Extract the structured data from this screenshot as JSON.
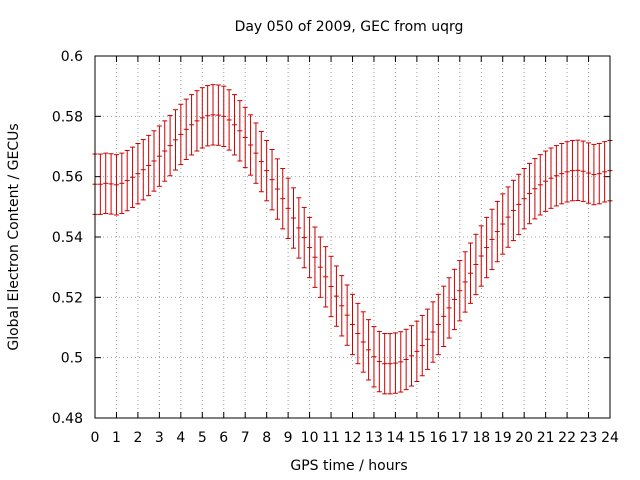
{
  "chart_data": {
    "type": "line",
    "title": "Day 050 of 2009, GEC from uqrg",
    "xlabel": "GPS time / hours",
    "ylabel": "Global Electron Content / GECUs",
    "xlim": [
      0,
      24
    ],
    "ylim": [
      0.48,
      0.6
    ],
    "xticks": [
      "0",
      "1",
      "2",
      "3",
      "4",
      "5",
      "6",
      "7",
      "8",
      "9",
      "10",
      "11",
      "12",
      "13",
      "14",
      "15",
      "16",
      "17",
      "18",
      "19",
      "20",
      "21",
      "22",
      "23",
      "24"
    ],
    "yticks": [
      "0.48",
      "0.5",
      "0.52",
      "0.54",
      "0.56",
      "0.58",
      "0.6"
    ],
    "grid": true,
    "color": "#cc0000",
    "error": 0.01,
    "step_hours": 0.25,
    "series": [
      {
        "name": "GEC",
        "values": [
          0.5575,
          0.5575,
          0.5578,
          0.5576,
          0.5573,
          0.5578,
          0.5587,
          0.5598,
          0.561,
          0.5623,
          0.5637,
          0.5652,
          0.5668,
          0.5685,
          0.5703,
          0.5722,
          0.574,
          0.5757,
          0.5772,
          0.5785,
          0.5795,
          0.5802,
          0.5805,
          0.5804,
          0.58,
          0.5788,
          0.5772,
          0.5752,
          0.573,
          0.5705,
          0.5678,
          0.565,
          0.562,
          0.559,
          0.5559,
          0.5527,
          0.5495,
          0.5463,
          0.543,
          0.5398,
          0.5365,
          0.5333,
          0.53,
          0.5268,
          0.5236,
          0.5204,
          0.5172,
          0.5141,
          0.511,
          0.508,
          0.5052,
          0.5026,
          0.5003,
          0.4987,
          0.498,
          0.498,
          0.4982,
          0.4986,
          0.4994,
          0.5006,
          0.5021,
          0.504,
          0.5061,
          0.5085,
          0.511,
          0.5137,
          0.5165,
          0.5193,
          0.5222,
          0.5251,
          0.528,
          0.5309,
          0.5337,
          0.5365,
          0.5392,
          0.5418,
          0.5443,
          0.5466,
          0.5488,
          0.5508,
          0.5527,
          0.5544,
          0.556,
          0.5573,
          0.5585,
          0.5595,
          0.5603,
          0.561,
          0.5616,
          0.562,
          0.5621,
          0.5618,
          0.5612,
          0.5607,
          0.561,
          0.5616,
          0.562
        ]
      }
    ]
  }
}
